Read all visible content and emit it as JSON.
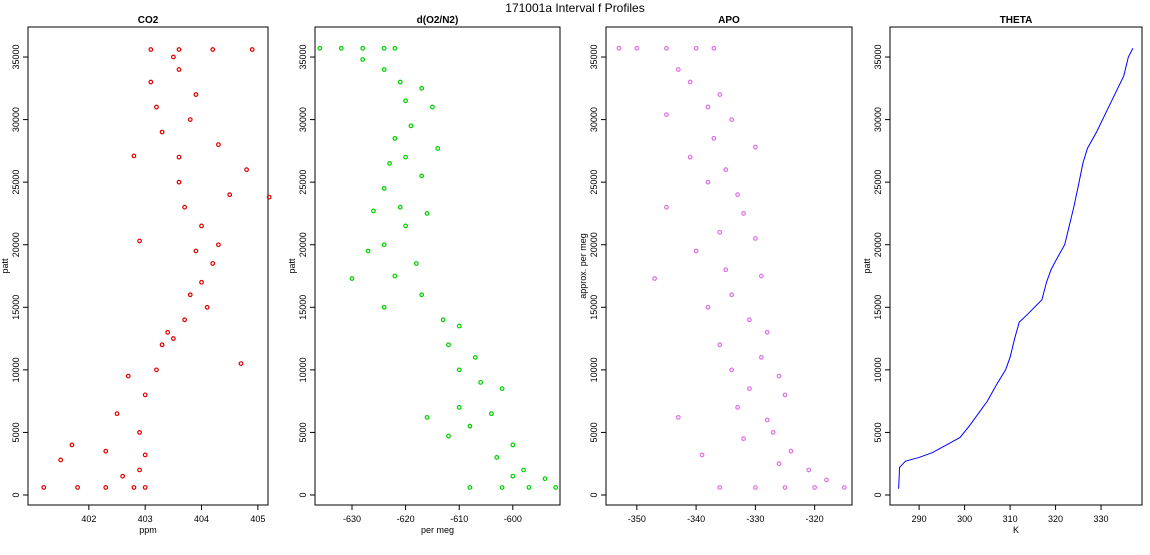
{
  "title": "171001a   Interval f Profiles",
  "chart_data": [
    {
      "type": "scatter",
      "title": "CO2",
      "x_label": "ppm",
      "y_label": "patt",
      "xlim": [
        400.92,
        405.18
      ],
      "ylim": [
        -800,
        37400
      ],
      "xticks": [
        402,
        403,
        404,
        405
      ],
      "yticks": [
        0,
        5000,
        10000,
        15000,
        20000,
        25000,
        30000,
        35000
      ],
      "series": [
        {
          "color": "#e00000",
          "x": [
            401.2,
            401.8,
            402.3,
            402.8,
            403.0,
            402.6,
            402.9,
            402.3,
            401.7,
            403.0,
            402.5,
            402.9,
            403.0,
            402.7,
            403.2,
            403.3,
            403.5,
            403.7,
            403.4,
            404.1,
            404.0,
            403.8,
            404.2,
            403.9,
            404.3,
            404.0,
            403.7,
            404.5,
            403.6,
            404.8,
            403.6,
            404.3,
            403.3,
            403.8,
            403.2,
            403.9,
            403.1,
            403.6,
            403.5,
            403.1,
            403.6,
            404.2,
            404.9,
            402.8,
            405.2,
            402.9,
            404.7,
            401.5
          ],
          "y": [
            600,
            600,
            600,
            600,
            600,
            1500,
            2000,
            3500,
            4000,
            3200,
            6500,
            5000,
            8000,
            9500,
            10000,
            12000,
            12500,
            14000,
            13000,
            15000,
            17000,
            16000,
            18500,
            19500,
            20000,
            21500,
            23000,
            24000,
            25000,
            26000,
            27000,
            28000,
            29000,
            30000,
            31000,
            32000,
            33000,
            34000,
            35000,
            35600,
            35600,
            35600,
            35600,
            27100,
            23800,
            20300,
            10500,
            2800
          ]
        }
      ]
    },
    {
      "type": "scatter",
      "title": "d(O2/N2)",
      "x_label": "per meg",
      "y_label": "patt",
      "xlim": [
        -636.9,
        -591.2
      ],
      "ylim": [
        -800,
        37400
      ],
      "xticks": [
        -630,
        -620,
        -610,
        -600
      ],
      "yticks": [
        0,
        5000,
        10000,
        15000,
        20000,
        25000,
        30000,
        35000
      ],
      "series": [
        {
          "color": "#00d000",
          "x": [
            -636,
            -632,
            -628,
            -624,
            -622,
            -628,
            -624,
            -621,
            -617,
            -620,
            -615,
            -619,
            -622,
            -614,
            -620,
            -623,
            -617,
            -624,
            -621,
            -616,
            -626,
            -620,
            -624,
            -627,
            -618,
            -622,
            -630,
            -617,
            -624,
            -613,
            -610,
            -612,
            -607,
            -610,
            -606,
            -602,
            -610,
            -604,
            -608,
            -612,
            -600,
            -603,
            -598,
            -600,
            -608,
            -602,
            -597,
            -592,
            -616,
            -594
          ],
          "y": [
            35700,
            35700,
            35700,
            35700,
            35700,
            34800,
            34000,
            33000,
            32500,
            31500,
            31000,
            29500,
            28500,
            27700,
            27000,
            26500,
            25500,
            24500,
            23000,
            22500,
            22700,
            21500,
            20000,
            19500,
            18500,
            17500,
            17300,
            16000,
            15000,
            14000,
            13500,
            12000,
            11000,
            10000,
            9000,
            8500,
            7000,
            6500,
            5500,
            4700,
            4000,
            3000,
            2000,
            1500,
            600,
            600,
            600,
            600,
            6200,
            1300
          ]
        }
      ]
    },
    {
      "type": "scatter",
      "title": "APO",
      "x_label": "",
      "y_label": "approx. per meg",
      "xlim": [
        -355.2,
        -313.7
      ],
      "ylim": [
        -800,
        37400
      ],
      "xticks": [
        -350,
        -340,
        -330,
        -320
      ],
      "yticks": [
        0,
        5000,
        10000,
        15000,
        20000,
        25000,
        30000,
        35000
      ],
      "series": [
        {
          "color": "#e070e8",
          "x": [
            -353,
            -350,
            -345,
            -340,
            -337,
            -343,
            -341,
            -336,
            -338,
            -345,
            -334,
            -337,
            -330,
            -341,
            -335,
            -338,
            -333,
            -345,
            -332,
            -336,
            -330,
            -340,
            -335,
            -329,
            -347,
            -334,
            -338,
            -331,
            -328,
            -336,
            -329,
            -334,
            -326,
            -331,
            -325,
            -333,
            -328,
            -343,
            -327,
            -332,
            -324,
            -326,
            -321,
            -318,
            -336,
            -330,
            -325,
            -320,
            -315,
            -339
          ],
          "y": [
            35700,
            35700,
            35700,
            35700,
            35700,
            34000,
            33000,
            32000,
            31000,
            30400,
            30000,
            28500,
            27800,
            27000,
            26000,
            25000,
            24000,
            23000,
            22500,
            21000,
            20500,
            19500,
            18000,
            17500,
            17300,
            16000,
            15000,
            14000,
            13000,
            12000,
            11000,
            10000,
            9500,
            8500,
            8000,
            7000,
            6000,
            6200,
            5000,
            4500,
            3500,
            2500,
            2000,
            1200,
            600,
            600,
            600,
            600,
            600,
            3200
          ]
        }
      ]
    },
    {
      "type": "line",
      "title": "THETA",
      "x_label": "K",
      "y_label": "patt",
      "xlim": [
        283.6,
        339
      ],
      "ylim": [
        -800,
        37400
      ],
      "xticks": [
        290,
        300,
        310,
        320,
        330
      ],
      "yticks": [
        0,
        5000,
        10000,
        15000,
        20000,
        25000,
        30000,
        35000
      ],
      "series": [
        {
          "color": "#0000ff",
          "x": [
            285.5,
            285.7,
            287,
            290,
            293,
            296,
            299,
            301,
            303,
            305,
            307,
            309,
            310,
            311,
            312,
            314,
            317,
            318,
            319,
            320,
            322,
            323,
            324,
            325,
            326,
            327,
            329,
            331,
            333,
            335,
            336,
            337
          ],
          "y": [
            500,
            2200,
            2700,
            3000,
            3400,
            4000,
            4600,
            5500,
            6500,
            7500,
            8800,
            10000,
            11000,
            12500,
            13800,
            14500,
            15600,
            17000,
            18000,
            18700,
            20000,
            21500,
            23000,
            24700,
            26500,
            27700,
            29000,
            30500,
            32000,
            33500,
            35000,
            35700
          ]
        }
      ]
    }
  ]
}
